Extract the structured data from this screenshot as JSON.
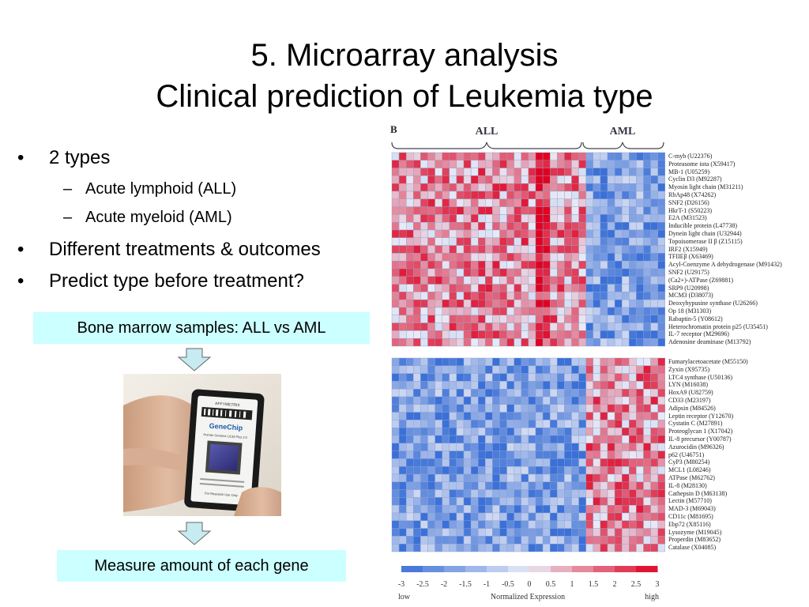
{
  "slide": {
    "title_line1": "5. Microarray analysis",
    "title_line2": "Clinical prediction of Leukemia type"
  },
  "bullets": [
    {
      "text": "2 types",
      "subs": [
        "Acute lymphoid (ALL)",
        "Acute myeloid (AML)"
      ]
    },
    {
      "text": "Different treatments & outcomes",
      "subs": []
    },
    {
      "text": "Predict type before treatment?",
      "subs": []
    }
  ],
  "bullet_glyph": "•",
  "dash_glyph": "–",
  "boxes": {
    "samples": "Bone marrow samples: ALL vs AML",
    "measure": "Measure amount of each gene"
  },
  "chip": {
    "brand": "AFFYMETRIX",
    "product": "GeneChip",
    "array": "Human Genome U133 Plus 2.0",
    "footer": "For Research Use Only"
  },
  "heatmap": {
    "panel_label": "B",
    "group_all": "ALL",
    "group_aml": "AML",
    "colorbar": {
      "ticks": [
        "-3",
        "-2.5",
        "-2",
        "-1.5",
        "-1",
        "-0.5",
        "0",
        "0.5",
        "1",
        "1.5",
        "2",
        "2.5",
        "3"
      ],
      "low": "low",
      "mid": "Normalized Expression",
      "high": "high",
      "colors": {
        "low": "#3a70d8",
        "mid": "#e8eaf6",
        "high": "#e00020"
      }
    },
    "top_genes": [
      "C-myb (U22376)",
      "Proteasome iota (X59417)",
      "MB-1 (U05259)",
      "Cyclin D3 (M92287)",
      "Myosin light chain (M31211)",
      "RbAp48 (X74262)",
      "SNF2 (D26156)",
      "HkrT-1 (S50223)",
      "E2A (M31523)",
      "Inducible protein (L47738)",
      "Dynein light chain (U32944)",
      "Topoisomerase II β (Z15115)",
      "IRF2 (X15949)",
      "TFIIEβ (X63469)",
      "Acyl-Coenzyme A dehydrogenase (M91432)",
      "SNF2 (U29175)",
      "(Ca2+)-ATPase (Z69881)",
      "SRP9 (U20998)",
      "MCM3 (D38073)",
      "Deoxyhypusine synthase (U26266)",
      "Op 18 (M31303)",
      "Rabaptin-5 (Y08612)",
      "Heterochromatin protein p25 (U35451)",
      "IL-7 receptor (M29696)",
      "Adenosine deaminase (M13792)"
    ],
    "bottom_genes": [
      "Fumarylacetoacetate (M55150)",
      "Zyxin (X95735)",
      "LTC4 synthase (U50136)",
      "LYN (M16038)",
      "HoxA9 (U82759)",
      "CD33 (M23197)",
      "Adipsin (M84526)",
      "Leptin receptor (Y12670)",
      "Cystatin C (M27891)",
      "Proteoglycan 1 (X17042)",
      "IL-8 precursor (Y00787)",
      "Azurocidin (M96326)",
      "p62 (U46751)",
      "CyP3 (M80254)",
      "MCL1 (L08246)",
      "ATPase (M62762)",
      "IL-8 (M28130)",
      "Cathepsin D (M63138)",
      "Lectin (M57710)",
      "MAD-3 (M69043)",
      "CD11c (M81695)",
      "Ebp72 (X85116)",
      "Lysozyme (M19045)",
      "Properdin (M83652)",
      "Catalase (X04085)"
    ]
  }
}
